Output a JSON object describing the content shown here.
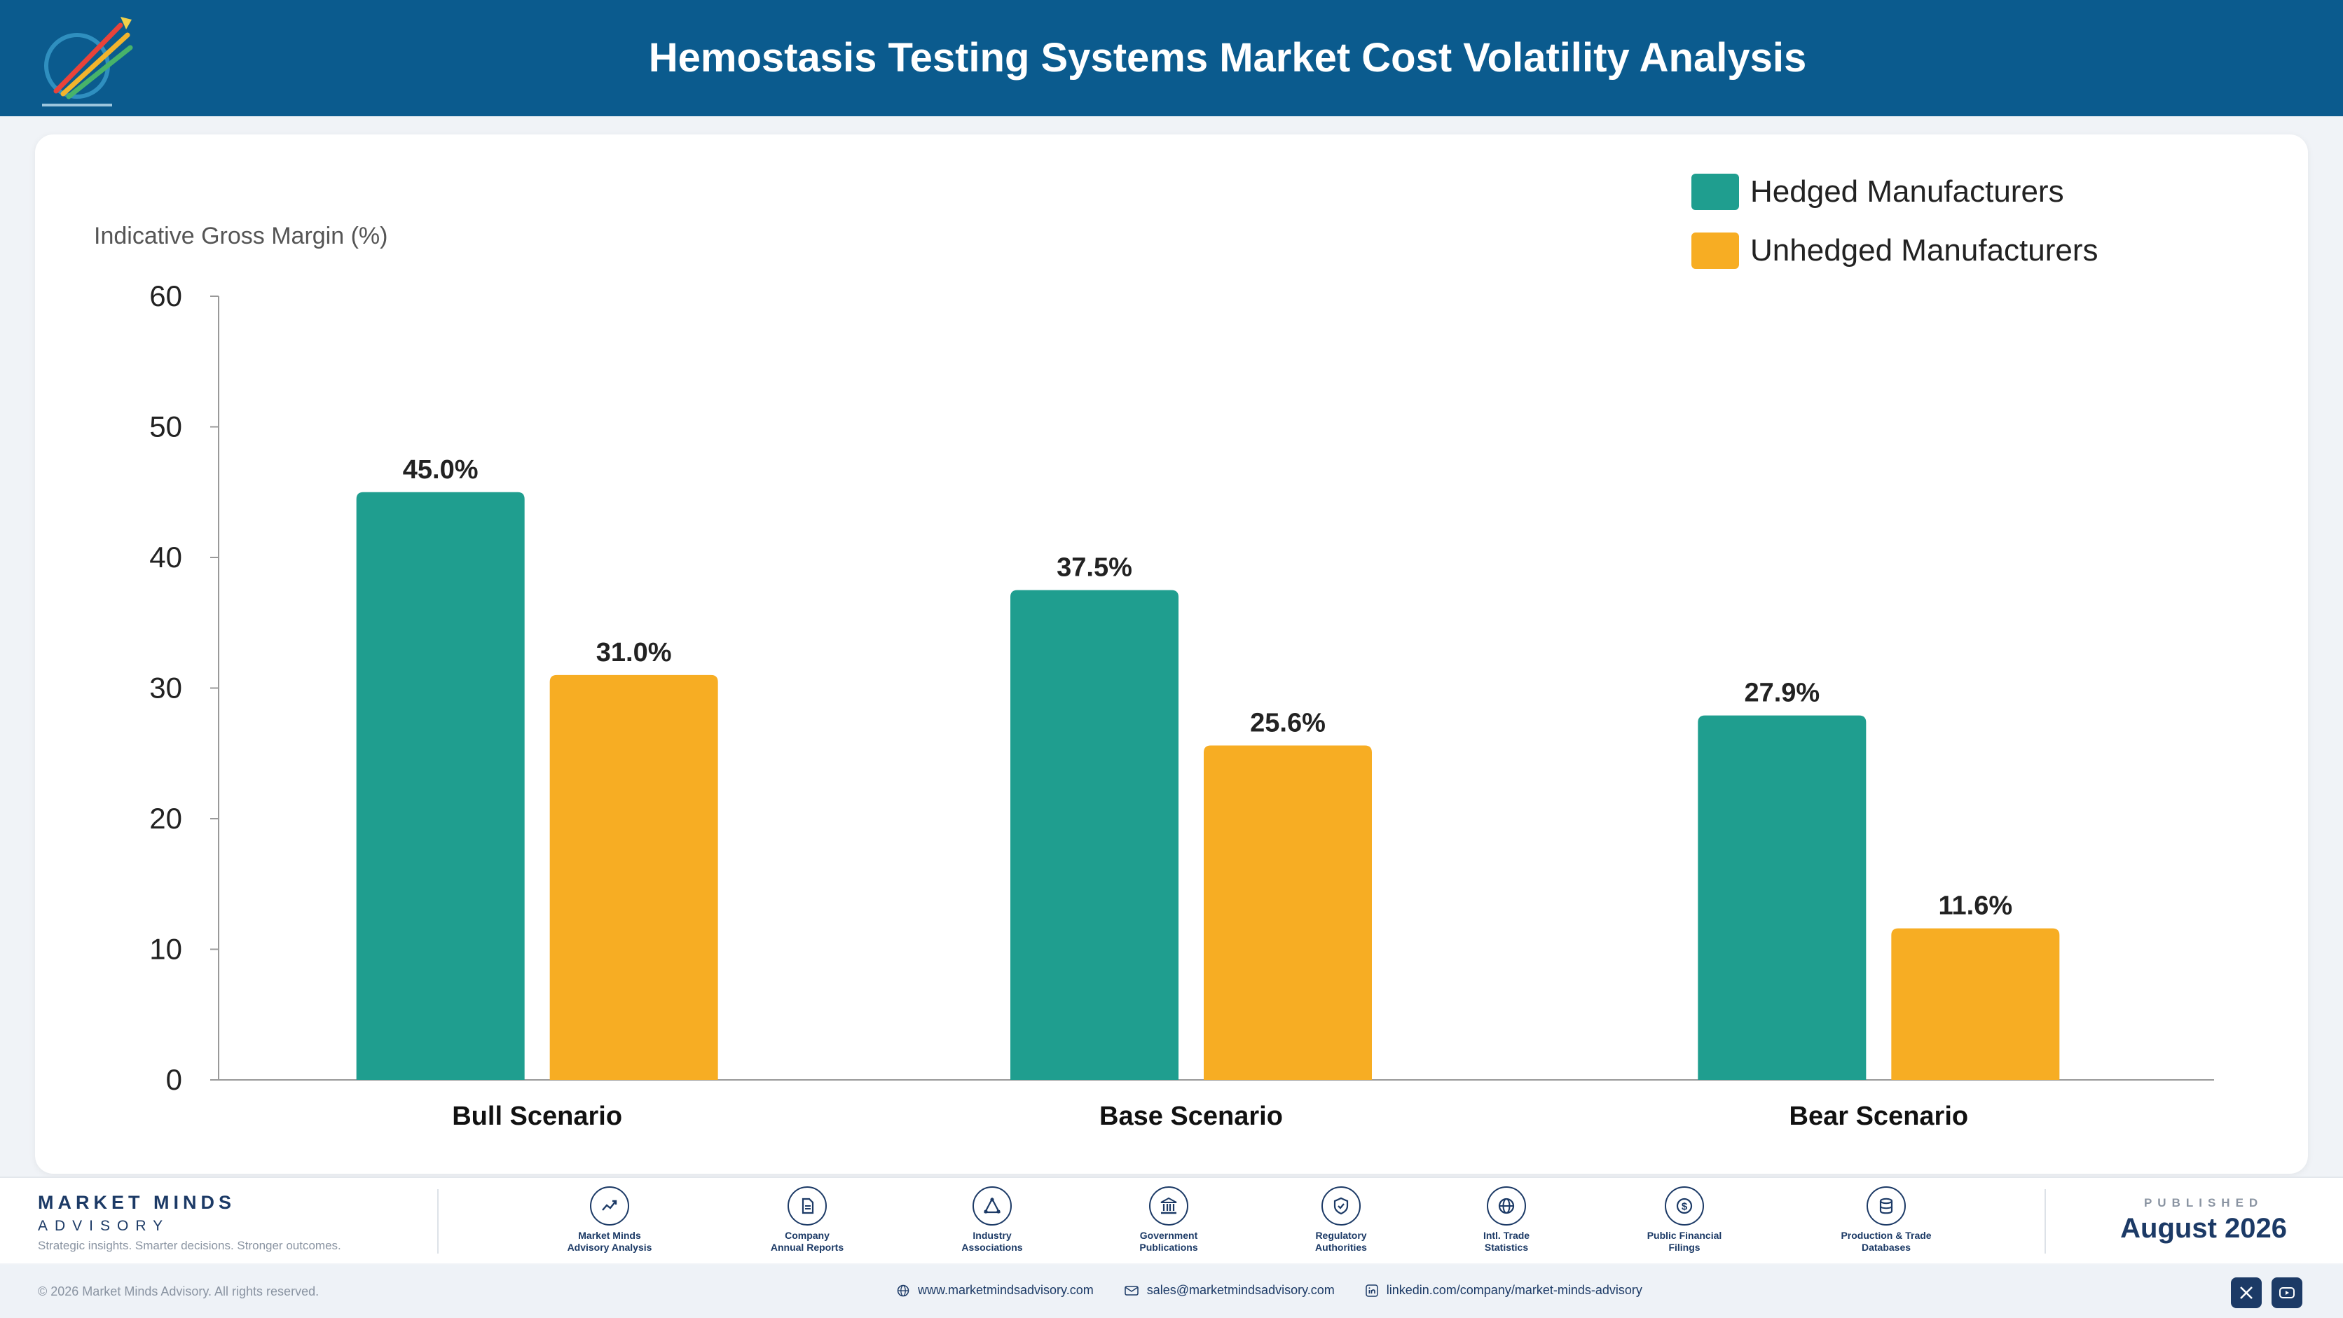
{
  "header": {
    "title": "Hemostasis Testing Systems Market Cost Volatility Analysis"
  },
  "colors": {
    "header_bg": "#0b5b8e",
    "hedged": "#1f9e8f",
    "unhedged": "#f7ad23",
    "brand": "#1c3a66"
  },
  "chart_data": {
    "type": "bar",
    "ylabel": "Indicative Gross Margin (%)",
    "ylim": [
      0,
      60
    ],
    "yticks": [
      0,
      10,
      20,
      30,
      40,
      50,
      60
    ],
    "categories": [
      "Bull Scenario",
      "Base Scenario",
      "Bear Scenario"
    ],
    "series": [
      {
        "name": "Hedged Manufacturers",
        "values": [
          45.0,
          37.5,
          27.9
        ],
        "labels": [
          "45.0%",
          "37.5%",
          "27.9%"
        ],
        "color": "#1f9e8f"
      },
      {
        "name": "Unhedged Manufacturers",
        "values": [
          31.0,
          25.6,
          11.6
        ],
        "labels": [
          "31.0%",
          "25.6%",
          "11.6%"
        ],
        "color": "#f7ad23"
      }
    ],
    "legend_position": "top-right",
    "grid": false
  },
  "footer": {
    "brand_name": "MARKET MINDS",
    "brand_sub": "ADVISORY",
    "tagline": "Strategic insights. Smarter decisions. Stronger outcomes.",
    "sources": [
      {
        "icon": "trend-chart-icon",
        "line1": "Market Minds",
        "line2": "Advisory Analysis"
      },
      {
        "icon": "document-icon",
        "line1": "Company",
        "line2": "Annual Reports"
      },
      {
        "icon": "network-icon",
        "line1": "Industry",
        "line2": "Associations"
      },
      {
        "icon": "government-building-icon",
        "line1": "Government",
        "line2": "Publications"
      },
      {
        "icon": "shield-check-icon",
        "line1": "Regulatory",
        "line2": "Authorities"
      },
      {
        "icon": "globe-icon",
        "line1": "Intl. Trade",
        "line2": "Statistics"
      },
      {
        "icon": "dollar-coin-icon",
        "line1": "Public Financial",
        "line2": "Filings"
      },
      {
        "icon": "database-icon",
        "line1": "Production & Trade",
        "line2": "Databases"
      }
    ],
    "published_label": "PUBLISHED",
    "published_date": "August 2026"
  },
  "bottom": {
    "copyright": "© 2026 Market Minds Advisory. All rights reserved.",
    "website": "www.marketmindsadvisory.com",
    "email": "sales@marketmindsadvisory.com",
    "linkedin": "linkedin.com/company/market-minds-advisory"
  }
}
